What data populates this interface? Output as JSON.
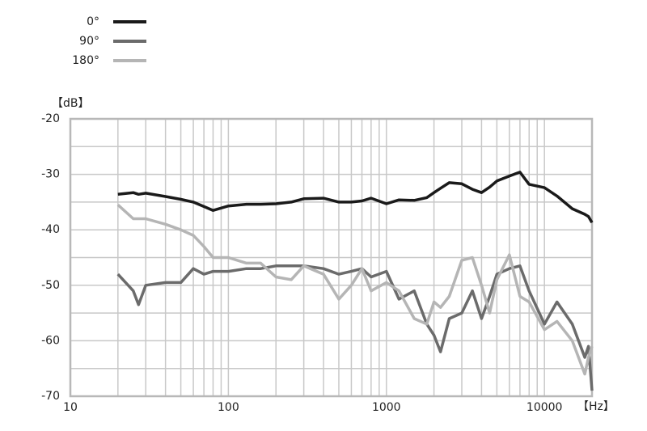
{
  "chart_data": {
    "type": "line",
    "y_label": "【dB】",
    "x_label": "【Hz】",
    "xscale": "log",
    "grid": true,
    "legend": "top-left",
    "xlim": [
      10,
      20000
    ],
    "xticks": [
      10,
      100,
      1000,
      10000
    ],
    "ylim": [
      -70,
      -20
    ],
    "yticks": [
      -70,
      -60,
      -50,
      -40,
      -30,
      -20
    ],
    "x": [
      20,
      25,
      27,
      30,
      40,
      50,
      60,
      70,
      80,
      100,
      130,
      160,
      200,
      250,
      300,
      400,
      500,
      600,
      700,
      800,
      1000,
      1200,
      1500,
      1800,
      2000,
      2200,
      2500,
      3000,
      3500,
      4000,
      4500,
      5000,
      6000,
      7000,
      8000,
      10000,
      12000,
      15000,
      18000,
      19000,
      20000
    ],
    "series": [
      {
        "name": "0°",
        "color": "#1a1a1a",
        "values": [
          -33.6,
          -33.3,
          -33.6,
          -33.4,
          -34,
          -34.5,
          -35,
          -35.8,
          -36.5,
          -35.7,
          -35.4,
          -35.4,
          -35.3,
          -35,
          -34.4,
          -34.3,
          -35,
          -35,
          -34.8,
          -34.3,
          -35.3,
          -34.6,
          -34.7,
          -34.2,
          -33.3,
          -32.5,
          -31.5,
          -31.7,
          -32.7,
          -33.3,
          -32.3,
          -31.2,
          -30.3,
          -29.6,
          -31.8,
          -32.4,
          -33.9,
          -36.2,
          -37.2,
          -37.6,
          -38.7
        ]
      },
      {
        "name": "90°",
        "color": "#6b6b6b",
        "values": [
          -48,
          -51,
          -53.5,
          -50,
          -49.5,
          -49.5,
          -47,
          -48,
          -47.5,
          -47.5,
          -47,
          -47,
          -46.5,
          -46.5,
          -46.5,
          -47,
          -48,
          -47.5,
          -47,
          -48.5,
          -47.5,
          -52.5,
          -51,
          -57,
          -59,
          -62,
          -56,
          -55,
          -51,
          -56,
          -52,
          -48,
          -47,
          -46.5,
          -51,
          -57,
          -53,
          -57,
          -63,
          -61,
          -69
        ]
      },
      {
        "name": "180°",
        "color": "#b5b5b5",
        "values": [
          -35.5,
          -38,
          -38,
          -38,
          -39,
          -40,
          -41,
          -43,
          -45,
          -45,
          -46,
          -46,
          -48.5,
          -49,
          -46.5,
          -48,
          -52.5,
          -50,
          -47,
          -51,
          -49.5,
          -51,
          -56,
          -57,
          -53,
          -54,
          -52,
          -45.5,
          -45,
          -50,
          -55,
          -49,
          -44.5,
          -52,
          -53,
          -58,
          -56.5,
          -60,
          -66,
          -63,
          -61
        ]
      }
    ]
  }
}
